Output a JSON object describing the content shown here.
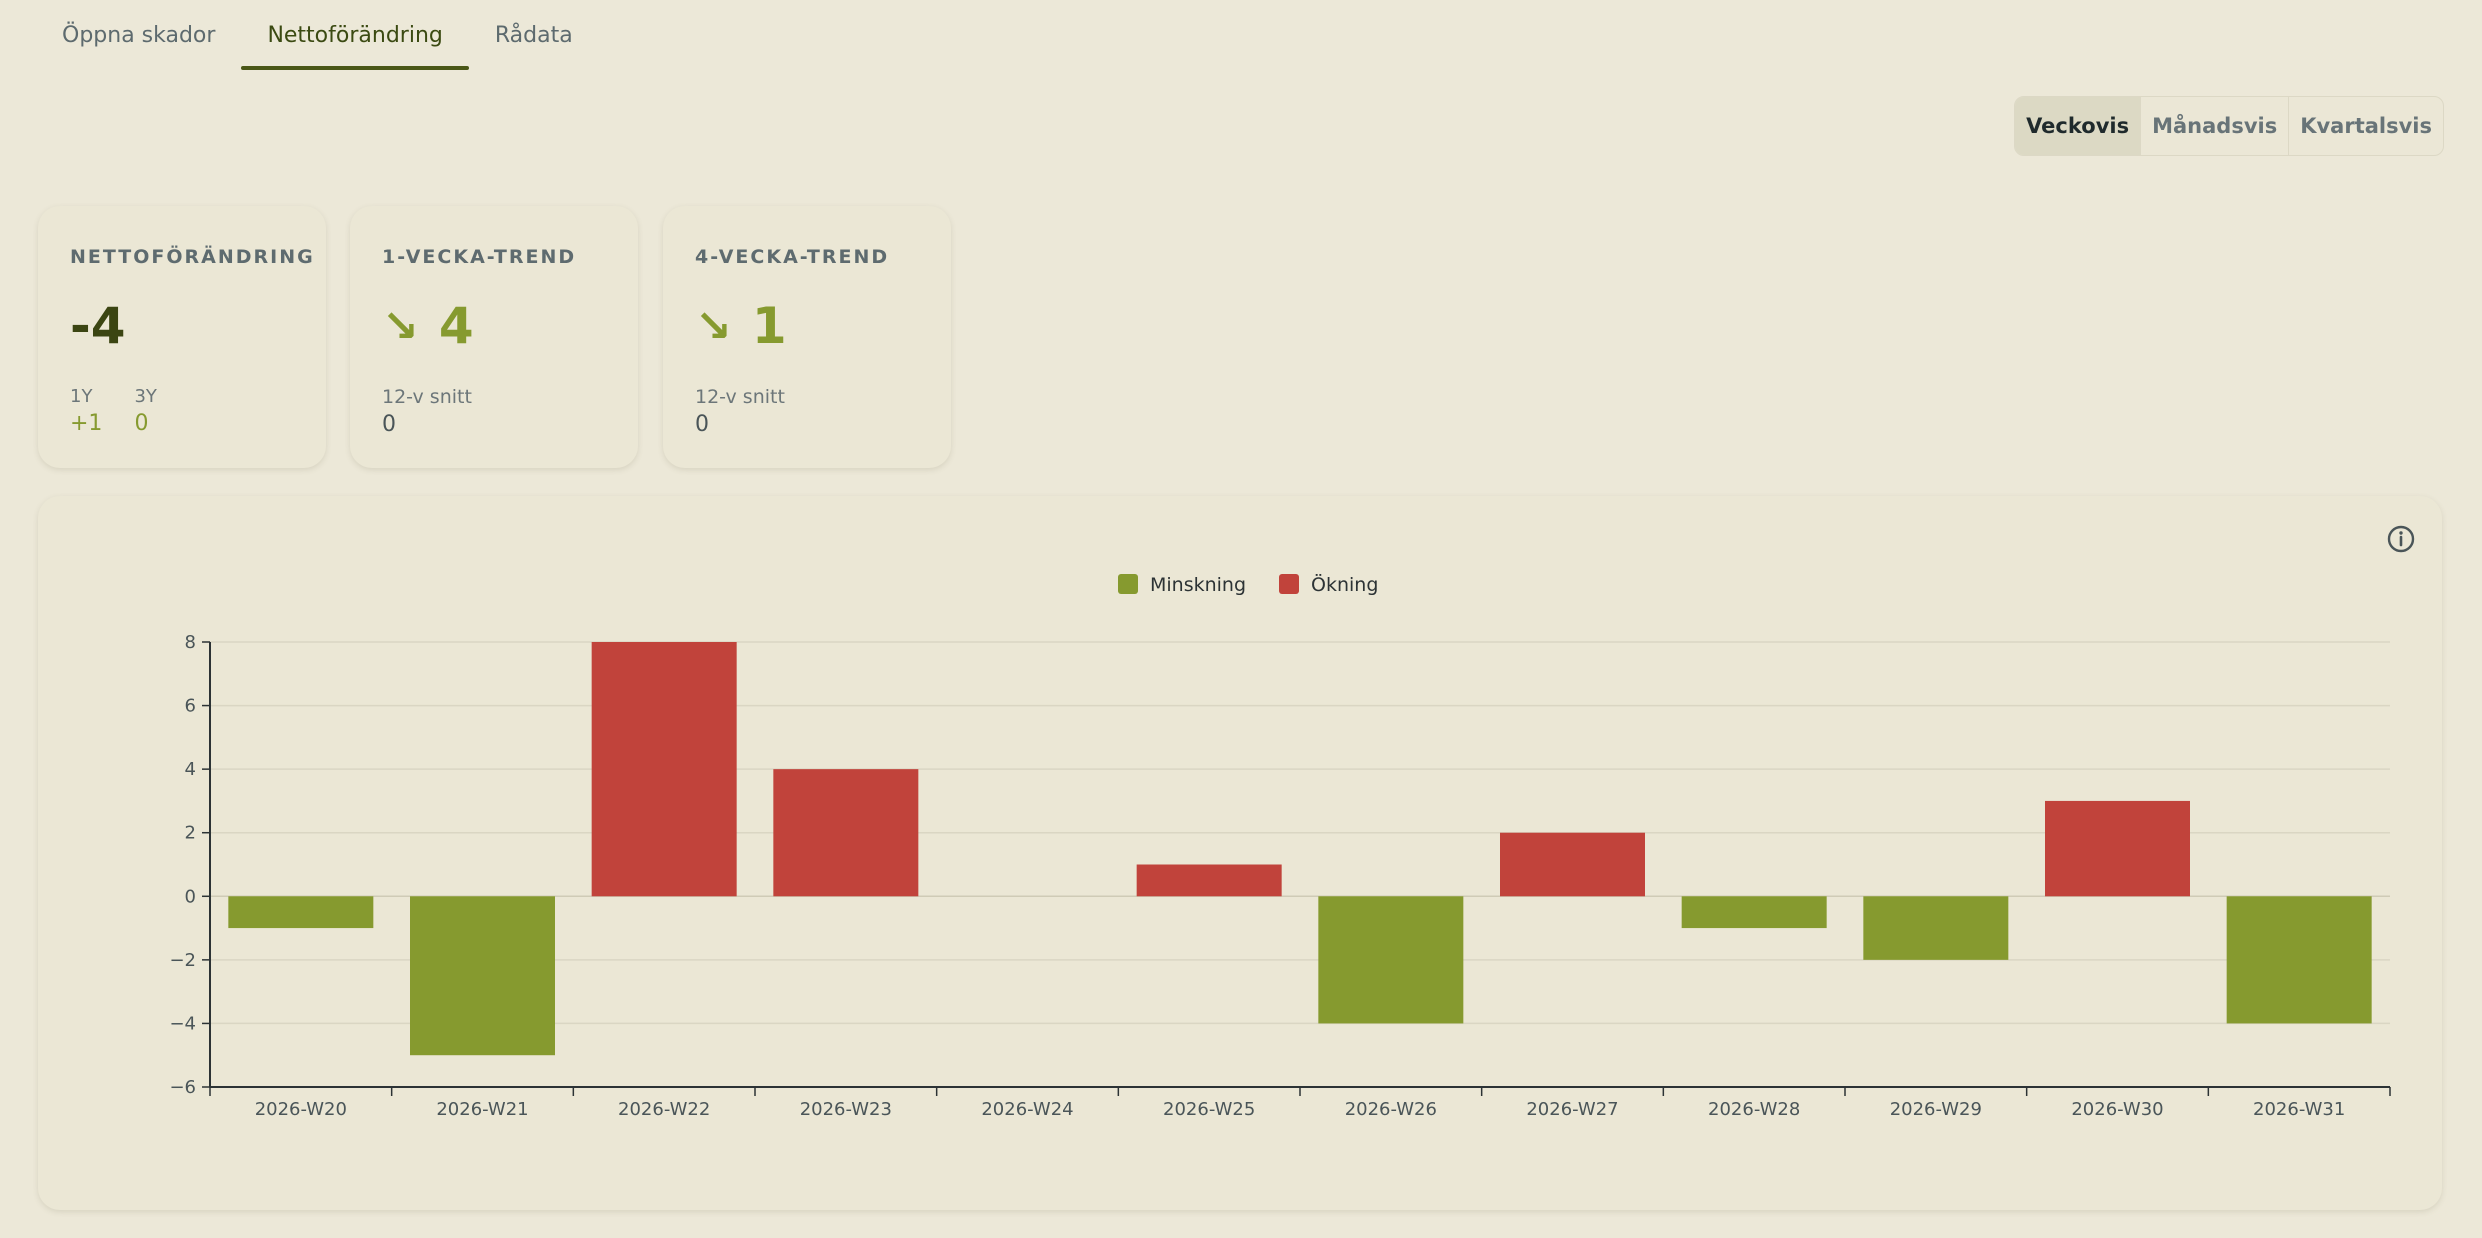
{
  "tabs": [
    {
      "label": "Öppna skador"
    },
    {
      "label": "Nettoförändring"
    },
    {
      "label": "Rådata"
    }
  ],
  "period": {
    "options": [
      "Veckovis",
      "Månadsvis",
      "Kvartalsvis"
    ],
    "selected": "Veckovis"
  },
  "cards": {
    "net": {
      "label": "NETTOFÖRÄNDRING",
      "value": "-4",
      "y1_label": "1Y",
      "y1_value": "+1",
      "y3_label": "3Y",
      "y3_value": "0"
    },
    "trend1": {
      "label": "1-VECKA-TREND",
      "arrow": "↘",
      "value": "4",
      "sub_label": "12-v snitt",
      "sub_value": "0"
    },
    "trend4": {
      "label": "4-VECKA-TREND",
      "arrow": "↘",
      "value": "1",
      "sub_label": "12-v snitt",
      "sub_value": "0"
    }
  },
  "icons": {
    "info": "info-icon",
    "trend": "arrow-down-right-icon"
  },
  "colors": {
    "decrease": "#869a2f",
    "increase": "#c1433b",
    "accent": "#4a5717"
  },
  "chart_data": {
    "type": "bar",
    "categories": [
      "2026-W20",
      "2026-W21",
      "2026-W22",
      "2026-W23",
      "2026-W24",
      "2026-W25",
      "2026-W26",
      "2026-W27",
      "2026-W28",
      "2026-W29",
      "2026-W30",
      "2026-W31"
    ],
    "values": [
      -1,
      -5,
      8,
      4,
      0,
      1,
      -4,
      2,
      -1,
      -2,
      3,
      -4
    ],
    "legend": [
      {
        "name": "Minskning",
        "color": "#869a2f"
      },
      {
        "name": "Ökning",
        "color": "#c1433b"
      }
    ],
    "legend_position": "top-center",
    "ylim": [
      -6,
      8
    ],
    "yticks": [
      8,
      6,
      4,
      2,
      0,
      -2,
      -4,
      -6
    ],
    "grid": true
  }
}
